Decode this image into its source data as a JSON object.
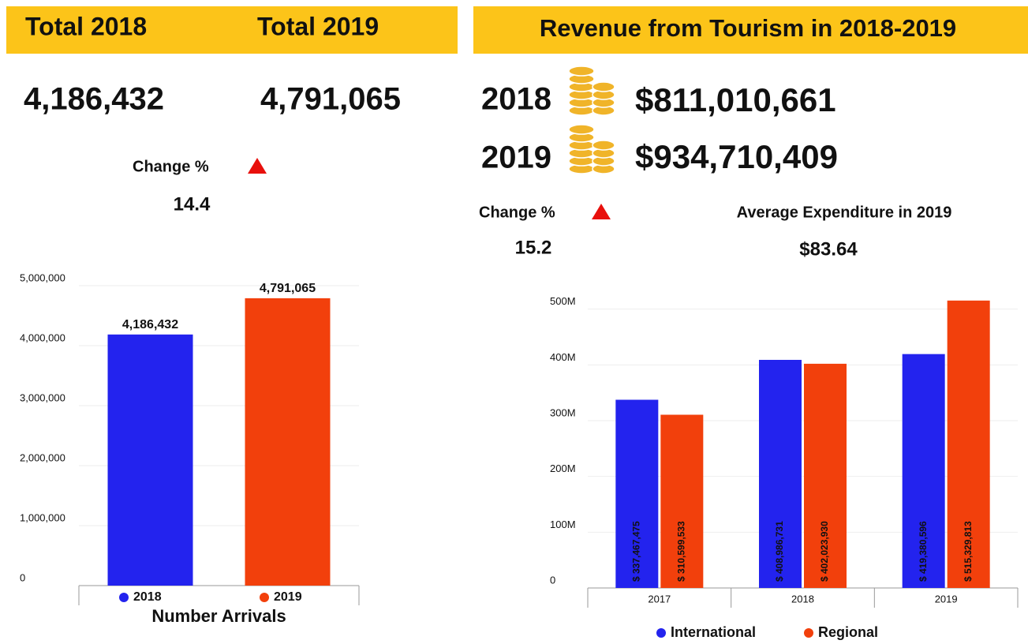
{
  "left": {
    "headers": [
      "Total 2018",
      "Total 2019"
    ],
    "totals": [
      "4,186,432",
      "4,791,065"
    ],
    "change_label": "Change %",
    "change_value": "14.4"
  },
  "right": {
    "title": "Revenue from Tourism in 2018-2019",
    "revenue": [
      {
        "year": "2018",
        "amount": "$811,010,661"
      },
      {
        "year": "2019",
        "amount": "$934,710,409"
      }
    ],
    "change_label": "Change %",
    "change_value": "15.2",
    "average_label": "Average Expenditure in 2019",
    "average_value": "$83.64"
  },
  "chart_data": [
    {
      "type": "bar",
      "x_label": "Number Arrivals",
      "categories": [
        null
      ],
      "series": [
        {
          "name": "2018",
          "color": "#2323ee",
          "values": [
            4186432
          ],
          "value_labels": [
            "4,186,432"
          ]
        },
        {
          "name": "2019",
          "color": "#f2400c",
          "values": [
            4791065
          ],
          "value_labels": [
            "4,791,065"
          ]
        }
      ],
      "ylim": [
        0,
        5000000
      ],
      "yticks": [
        0,
        {
          "value": 1000000,
          "label": "1,000,000"
        },
        {
          "value": 2000000,
          "label": "2,000,000"
        },
        {
          "value": 3000000,
          "label": "3,000,000"
        },
        {
          "value": 4000000,
          "label": "4,000,000"
        },
        {
          "value": 5000000,
          "label": "5,000,000"
        }
      ],
      "grid": true
    },
    {
      "type": "bar",
      "categories": [
        "2017",
        "2018",
        "2019"
      ],
      "series": [
        {
          "name": "International",
          "color": "#2323ee",
          "values": [
            337467475,
            408986731,
            419380596
          ],
          "value_labels": [
            "$ 337,467,475",
            "$ 408,986,731",
            "$ 419,380,596"
          ]
        },
        {
          "name": "Regional",
          "color": "#f2400c",
          "values": [
            310599533,
            402023930,
            515329813
          ],
          "value_labels": [
            "$ 310,599,533",
            "$ 402,023,930",
            "$ 515,329,813"
          ]
        }
      ],
      "ylim": [
        0,
        525000000
      ],
      "yticks": [
        0,
        {
          "value": 100000000,
          "label": "100M"
        },
        {
          "value": 200000000,
          "label": "200M"
        },
        {
          "value": 300000000,
          "label": "300M"
        },
        {
          "value": 400000000,
          "label": "400M"
        },
        {
          "value": 500000000,
          "label": "500M"
        }
      ],
      "grid": true
    }
  ]
}
